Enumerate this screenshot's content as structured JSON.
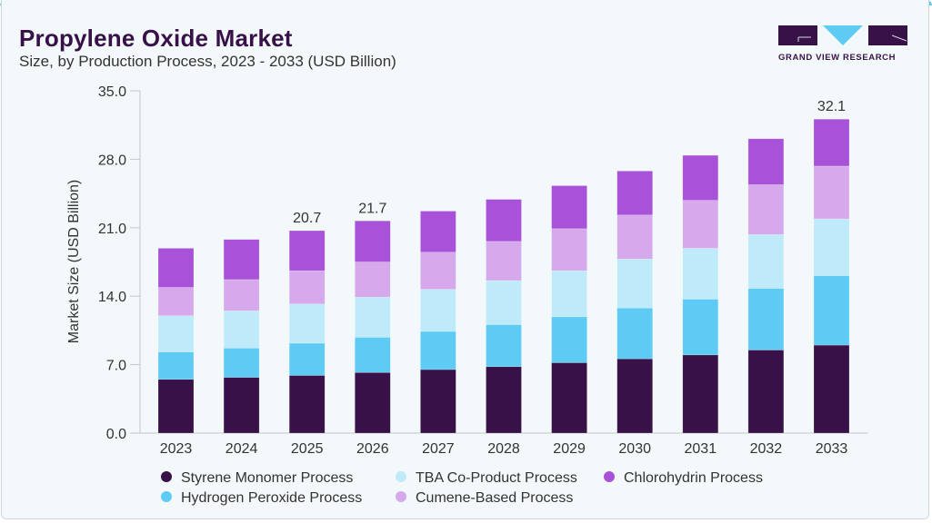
{
  "header": {
    "title": "Propylene Oxide Market",
    "subtitle": "Size, by Production Process, 2023 - 2033 (USD Billion)"
  },
  "logo": {
    "text": "GRAND VIEW RESEARCH"
  },
  "colors": {
    "accent": "#5ECBF5",
    "background": "#F3F8FB",
    "brand": "#371148"
  },
  "chart_data": {
    "type": "bar",
    "stacked": true,
    "title": "Propylene Oxide Market",
    "subtitle": "Size, by Production Process, 2023 - 2033 (USD Billion)",
    "xlabel": "",
    "ylabel": "Market Size (USD Billion)",
    "ylim": [
      0,
      35
    ],
    "yticks": [
      "0.0",
      "7.0",
      "14.0",
      "21.0",
      "28.0",
      "35.0"
    ],
    "grid": false,
    "legend_placement": "bottom",
    "categories": [
      "2023",
      "2024",
      "2025",
      "2026",
      "2027",
      "2028",
      "2029",
      "2030",
      "2031",
      "2032",
      "2033"
    ],
    "series": [
      {
        "name": "Styrene Monomer Process",
        "color": "#371148",
        "values": [
          5.5,
          5.7,
          5.9,
          6.2,
          6.5,
          6.8,
          7.2,
          7.6,
          8.0,
          8.5,
          9.0
        ]
      },
      {
        "name": "Hydrogen Peroxide Process",
        "color": "#5ECBF5",
        "values": [
          2.8,
          3.0,
          3.3,
          3.6,
          3.9,
          4.3,
          4.7,
          5.2,
          5.7,
          6.3,
          7.1
        ]
      },
      {
        "name": "TBA Co-Product Process",
        "color": "#BEEAF9",
        "values": [
          3.7,
          3.8,
          4.0,
          4.1,
          4.3,
          4.5,
          4.7,
          5.0,
          5.2,
          5.5,
          5.8
        ]
      },
      {
        "name": "Cumene-Based Process",
        "color": "#D5A9EC",
        "values": [
          2.9,
          3.2,
          3.4,
          3.6,
          3.8,
          4.0,
          4.3,
          4.5,
          4.9,
          5.1,
          5.4
        ]
      },
      {
        "name": "Chlorohydrin Process",
        "color": "#A752D8",
        "values": [
          4.0,
          4.1,
          4.1,
          4.2,
          4.2,
          4.3,
          4.4,
          4.5,
          4.6,
          4.7,
          4.8
        ]
      }
    ],
    "data_labels": [
      null,
      null,
      "20.7",
      "21.7",
      null,
      null,
      null,
      null,
      null,
      null,
      "32.1"
    ],
    "legend_order": [
      0,
      2,
      4,
      1,
      3
    ]
  }
}
